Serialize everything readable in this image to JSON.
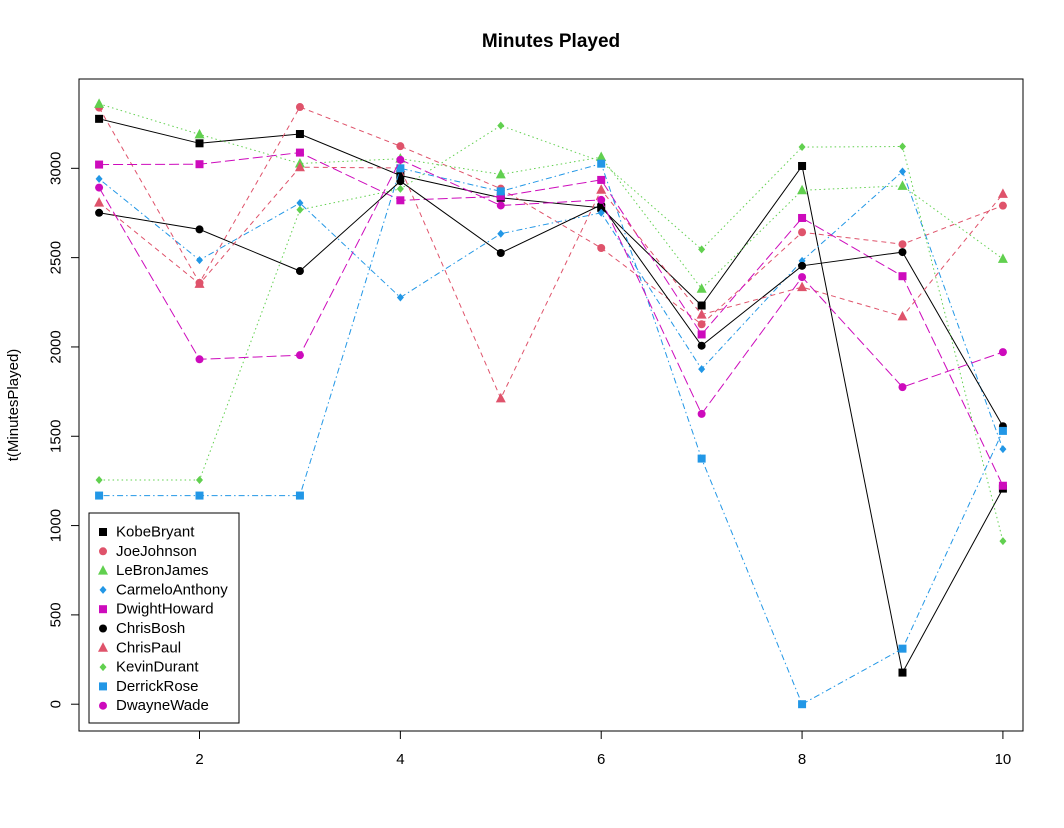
{
  "chart_data": {
    "type": "line",
    "title": "Minutes Played",
    "xlabel": "",
    "ylabel": "t(MinutesPlayed)",
    "xlim": [
      0.8,
      10.2
    ],
    "ylim": [
      -150,
      3500
    ],
    "x_ticks": [
      2,
      4,
      6,
      8,
      10
    ],
    "y_ticks": [
      0,
      500,
      1000,
      1500,
      2000,
      2500,
      3000
    ],
    "x": [
      1,
      2,
      3,
      4,
      5,
      6,
      7,
      8,
      9,
      10
    ],
    "grid": false,
    "legend_position": "bottom-left",
    "series": [
      {
        "name": "KobeBryant",
        "color": "#000000",
        "marker": "square",
        "dash": "solid",
        "values": [
          3277,
          3140,
          3192,
          2960,
          2835,
          2779,
          2232,
          3013,
          177,
          1207
        ]
      },
      {
        "name": "JoeJohnson",
        "color": "#DF536B",
        "marker": "circle",
        "dash": "dashed",
        "values": [
          3340,
          2359,
          3343,
          3124,
          2886,
          2554,
          2127,
          2642,
          2575,
          2791
        ]
      },
      {
        "name": "LeBronJames",
        "color": "#61D04F",
        "marker": "triangle",
        "dash": "dotted",
        "values": [
          3361,
          3190,
          3027,
          3054,
          2966,
          3063,
          2326,
          2877,
          2902,
          2493
        ]
      },
      {
        "name": "CarmeloAnthony",
        "color": "#2297E6",
        "marker": "diamond",
        "dash": "dotdash",
        "values": [
          2941,
          2486,
          2806,
          2277,
          2634,
          2751,
          1876,
          2482,
          2982,
          1428
        ]
      },
      {
        "name": "DwightHoward",
        "color": "#CD0BBC",
        "marker": "square",
        "dash": "longdash",
        "values": [
          3021,
          3023,
          3088,
          2821,
          2843,
          2935,
          2070,
          2722,
          2396,
          1223
        ]
      },
      {
        "name": "ChrisBosh",
        "color": "#000000",
        "marker": "circle",
        "dash": "solid",
        "values": [
          2751,
          2658,
          2425,
          2928,
          2526,
          2795,
          2007,
          2454,
          2531,
          1556
        ]
      },
      {
        "name": "ChrisPaul",
        "color": "#DF536B",
        "marker": "triangle",
        "dash": "dashed",
        "values": [
          2808,
          2353,
          3006,
          3002,
          1712,
          2880,
          2181,
          2335,
          2171,
          2857
        ]
      },
      {
        "name": "KevinDurant",
        "color": "#61D04F",
        "marker": "diamond",
        "dash": "dotted",
        "values": [
          1255,
          1255,
          2768,
          2885,
          3239,
          3038,
          2546,
          3119,
          3122,
          913
        ]
      },
      {
        "name": "DerrickRose",
        "color": "#2297E6",
        "marker": "square",
        "dash": "dotdash",
        "values": [
          1168,
          1168,
          1168,
          3000,
          2871,
          3026,
          1375,
          0,
          311,
          1530
        ]
      },
      {
        "name": "DwayneWade",
        "color": "#CD0BBC",
        "marker": "circle",
        "dash": "longdash",
        "values": [
          2892,
          1931,
          1954,
          3048,
          2792,
          2823,
          1625,
          2391,
          1775,
          1971
        ]
      }
    ]
  }
}
